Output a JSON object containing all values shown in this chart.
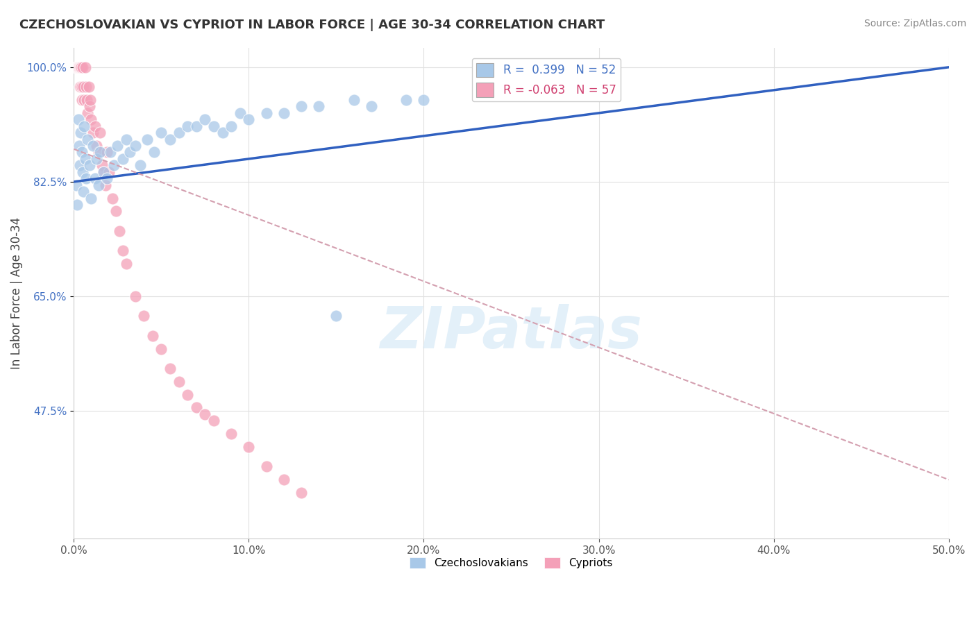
{
  "title": "CZECHOSLOVAKIAN VS CYPRIOT IN LABOR FORCE | AGE 30-34 CORRELATION CHART",
  "source": "Source: ZipAtlas.com",
  "xlabel": "",
  "ylabel": "In Labor Force | Age 30-34",
  "xlim": [
    0.0,
    50.0
  ],
  "ylim": [
    28.0,
    103.0
  ],
  "xticks": [
    0.0,
    10.0,
    20.0,
    30.0,
    40.0,
    50.0
  ],
  "yticks": [
    47.5,
    65.0,
    82.5,
    100.0
  ],
  "ytick_labels": [
    "47.5%",
    "65.0%",
    "82.5%",
    "100.0%"
  ],
  "xtick_labels": [
    "0.0%",
    "10.0%",
    "20.0%",
    "30.0%",
    "40.0%",
    "50.0%"
  ],
  "blue_color": "#a8c8e8",
  "pink_color": "#f4a0b8",
  "trend_blue": "#3060c0",
  "trend_pink": "#d4a0b0",
  "background_color": "#ffffff",
  "grid_color": "#e0e0e0",
  "czech_scatter_x": [
    0.15,
    0.2,
    0.25,
    0.3,
    0.35,
    0.4,
    0.45,
    0.5,
    0.55,
    0.6,
    0.65,
    0.7,
    0.8,
    0.9,
    1.0,
    1.1,
    1.2,
    1.3,
    1.4,
    1.5,
    1.7,
    1.9,
    2.1,
    2.3,
    2.5,
    2.8,
    3.0,
    3.2,
    3.5,
    3.8,
    4.2,
    4.6,
    5.0,
    5.5,
    6.0,
    6.5,
    7.0,
    7.5,
    8.0,
    8.5,
    9.0,
    9.5,
    10.0,
    11.0,
    12.0,
    13.0,
    14.0,
    15.0,
    16.0,
    17.0,
    19.0,
    20.0
  ],
  "czech_scatter_y": [
    82.0,
    79.0,
    92.0,
    88.0,
    85.0,
    90.0,
    87.0,
    84.0,
    81.0,
    91.0,
    86.0,
    83.0,
    89.0,
    85.0,
    80.0,
    88.0,
    83.0,
    86.0,
    82.0,
    87.0,
    84.0,
    83.0,
    87.0,
    85.0,
    88.0,
    86.0,
    89.0,
    87.0,
    88.0,
    85.0,
    89.0,
    87.0,
    90.0,
    89.0,
    90.0,
    91.0,
    91.0,
    92.0,
    91.0,
    90.0,
    91.0,
    93.0,
    92.0,
    93.0,
    93.0,
    94.0,
    94.0,
    62.0,
    95.0,
    94.0,
    95.0,
    95.0
  ],
  "cypriot_scatter_x": [
    0.1,
    0.12,
    0.15,
    0.18,
    0.2,
    0.22,
    0.25,
    0.28,
    0.3,
    0.33,
    0.35,
    0.38,
    0.4,
    0.42,
    0.45,
    0.48,
    0.5,
    0.55,
    0.6,
    0.65,
    0.7,
    0.75,
    0.8,
    0.85,
    0.9,
    0.95,
    1.0,
    1.1,
    1.2,
    1.3,
    1.4,
    1.5,
    1.6,
    1.7,
    1.8,
    1.9,
    2.0,
    2.2,
    2.4,
    2.6,
    2.8,
    3.0,
    3.5,
    4.0,
    4.5,
    5.0,
    5.5,
    6.0,
    6.5,
    7.0,
    7.5,
    8.0,
    9.0,
    10.0,
    11.0,
    12.0,
    13.0
  ],
  "cypriot_scatter_y": [
    100.0,
    100.0,
    100.0,
    100.0,
    100.0,
    100.0,
    100.0,
    100.0,
    100.0,
    100.0,
    97.0,
    97.0,
    100.0,
    100.0,
    97.0,
    95.0,
    100.0,
    97.0,
    95.0,
    100.0,
    97.0,
    95.0,
    93.0,
    97.0,
    94.0,
    95.0,
    92.0,
    90.0,
    91.0,
    88.0,
    87.0,
    90.0,
    85.0,
    84.0,
    82.0,
    87.0,
    84.0,
    80.0,
    78.0,
    75.0,
    72.0,
    70.0,
    65.0,
    62.0,
    59.0,
    57.0,
    54.0,
    52.0,
    50.0,
    48.0,
    47.0,
    46.0,
    44.0,
    42.0,
    39.0,
    37.0,
    35.0
  ],
  "blue_trend_x0": 0.0,
  "blue_trend_x1": 50.0,
  "blue_trend_y0": 82.5,
  "blue_trend_y1": 100.0,
  "pink_trend_x0": 0.0,
  "pink_trend_x1": 50.0,
  "pink_trend_y0": 87.5,
  "pink_trend_y1": 37.0
}
